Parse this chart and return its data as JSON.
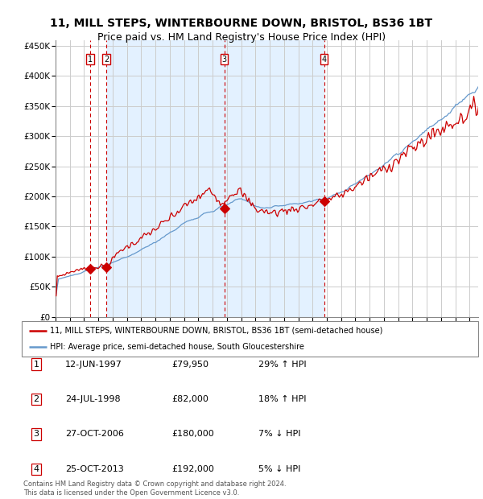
{
  "title": "11, MILL STEPS, WINTERBOURNE DOWN, BRISTOL, BS36 1BT",
  "subtitle": "Price paid vs. HM Land Registry's House Price Index (HPI)",
  "title_fontsize": 10,
  "subtitle_fontsize": 9,
  "legend_line1": "11, MILL STEPS, WINTERBOURNE DOWN, BRISTOL, BS36 1BT (semi-detached house)",
  "legend_line2": "HPI: Average price, semi-detached house, South Gloucestershire",
  "footer": "Contains HM Land Registry data © Crown copyright and database right 2024.\nThis data is licensed under the Open Government Licence v3.0.",
  "sale_labels": [
    "1",
    "2",
    "3",
    "4"
  ],
  "sale_dates_text": [
    "12-JUN-1997",
    "24-JUL-1998",
    "27-OCT-2006",
    "25-OCT-2013"
  ],
  "sale_prices_text": [
    "£79,950",
    "£82,000",
    "£180,000",
    "£192,000"
  ],
  "sale_hpi_text": [
    "29% ↑ HPI",
    "18% ↑ HPI",
    "7% ↓ HPI",
    "5% ↓ HPI"
  ],
  "sale_prices": [
    79950,
    82000,
    180000,
    192000
  ],
  "sale_date_numeric": [
    1997.44,
    1998.56,
    2006.82,
    2013.81
  ],
  "red_line_color": "#cc0000",
  "blue_line_color": "#6699cc",
  "shade_color": "#ddeeff",
  "background_color": "#ffffff",
  "grid_color": "#cccccc",
  "ylim": [
    0,
    460000
  ],
  "xlim_start": 1995.0,
  "xlim_end": 2024.6,
  "yticks": [
    0,
    50000,
    100000,
    150000,
    200000,
    250000,
    300000,
    350000,
    400000,
    450000
  ],
  "ytick_labels": [
    "£0",
    "£50K",
    "£100K",
    "£150K",
    "£200K",
    "£250K",
    "£300K",
    "£350K",
    "£400K",
    "£450K"
  ]
}
